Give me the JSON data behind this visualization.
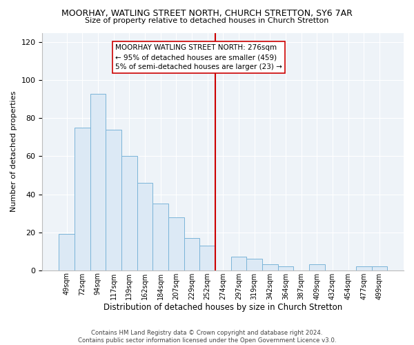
{
  "title": "MOORHAY, WATLING STREET NORTH, CHURCH STRETTON, SY6 7AR",
  "subtitle": "Size of property relative to detached houses in Church Stretton",
  "xlabel": "Distribution of detached houses by size in Church Stretton",
  "ylabel": "Number of detached properties",
  "bar_color": "#dce9f5",
  "bar_edge_color": "#7ab4d8",
  "categories": [
    "49sqm",
    "72sqm",
    "94sqm",
    "117sqm",
    "139sqm",
    "162sqm",
    "184sqm",
    "207sqm",
    "229sqm",
    "252sqm",
    "274sqm",
    "297sqm",
    "319sqm",
    "342sqm",
    "364sqm",
    "387sqm",
    "409sqm",
    "432sqm",
    "454sqm",
    "477sqm",
    "499sqm"
  ],
  "values": [
    19,
    75,
    93,
    74,
    60,
    46,
    35,
    28,
    17,
    13,
    0,
    7,
    6,
    3,
    2,
    0,
    3,
    0,
    0,
    2,
    2
  ],
  "vline_x": 9.5,
  "vline_color": "#cc0000",
  "annotation_text": "MOORHAY WATLING STREET NORTH: 276sqm\n← 95% of detached houses are smaller (459)\n5% of semi-detached houses are larger (23) →",
  "ylim": [
    0,
    125
  ],
  "yticks": [
    0,
    20,
    40,
    60,
    80,
    100,
    120
  ],
  "footer": "Contains HM Land Registry data © Crown copyright and database right 2024.\nContains public sector information licensed under the Open Government Licence v3.0.",
  "bg_color": "#eef3f8",
  "grid_color": "#ffffff"
}
